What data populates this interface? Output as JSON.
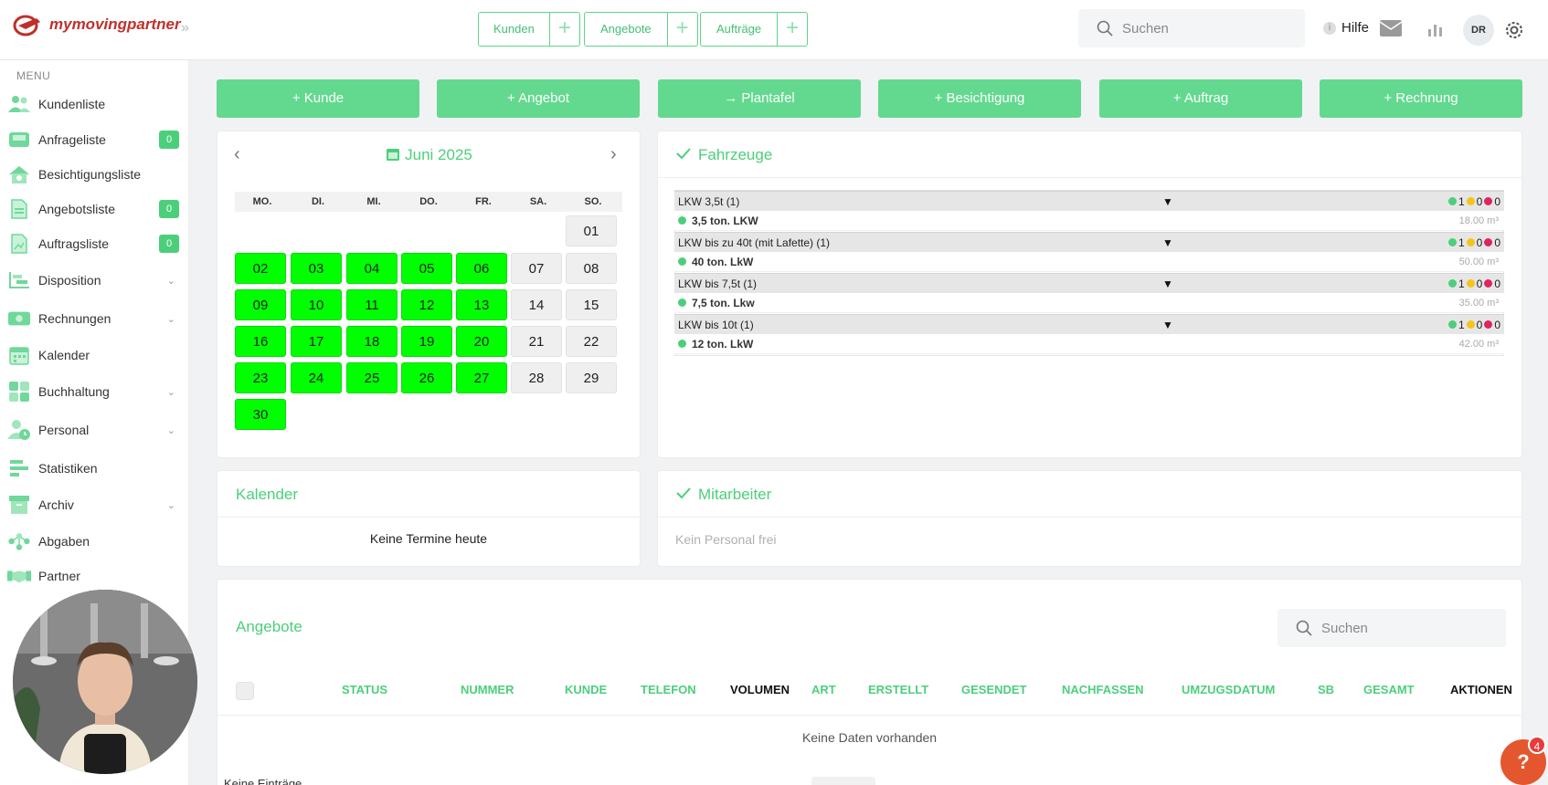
{
  "app": {
    "logo_text": "mymovingpartner"
  },
  "quick": [
    {
      "label": "Kunden"
    },
    {
      "label": "Angebote"
    },
    {
      "label": "Aufträge"
    }
  ],
  "search": {
    "placeholder": "Suchen"
  },
  "header": {
    "help": "Hilfe",
    "avatar": "DR"
  },
  "sidebar": {
    "menu_title": "MENU",
    "items": [
      {
        "label": "Kundenliste"
      },
      {
        "label": "Anfrageliste",
        "badge": "0"
      },
      {
        "label": "Besichtigungsliste"
      },
      {
        "label": "Angebotsliste",
        "badge": "0"
      },
      {
        "label": "Auftragsliste",
        "badge": "0"
      },
      {
        "label": "Disposition"
      },
      {
        "label": "Rechnungen"
      },
      {
        "label": "Kalender"
      },
      {
        "label": "Buchhaltung"
      },
      {
        "label": "Personal"
      },
      {
        "label": "Statistiken"
      },
      {
        "label": "Archiv"
      },
      {
        "label": "Abgaben"
      },
      {
        "label": "Partner"
      }
    ]
  },
  "actions": [
    {
      "label": "+ Kunde"
    },
    {
      "label": "+ Angebot"
    },
    {
      "label": "→ Plantafel"
    },
    {
      "label": "+ Besichtigung"
    },
    {
      "label": "+ Auftrag"
    },
    {
      "label": "+ Rechnung"
    }
  ],
  "calendar": {
    "month": "Juni 2025",
    "weekdays": [
      "MO.",
      "DI.",
      "MI.",
      "DO.",
      "FR.",
      "SA.",
      "SO."
    ],
    "days": [
      "01",
      "02",
      "03",
      "04",
      "05",
      "06",
      "07",
      "08",
      "09",
      "10",
      "11",
      "12",
      "13",
      "14",
      "15",
      "16",
      "17",
      "18",
      "19",
      "20",
      "21",
      "22",
      "23",
      "24",
      "25",
      "26",
      "27",
      "28",
      "29",
      "30"
    ]
  },
  "vehicles": {
    "title": "Fahrzeuge",
    "groups": [
      {
        "name": "LKW 3,5t (1)",
        "green": "1",
        "yellow": "0",
        "red": "0",
        "vehicle": "3,5 ton. LKW",
        "volume": "18.00 m³"
      },
      {
        "name": "LKW bis zu 40t (mit Lafette) (1)",
        "green": "1",
        "yellow": "0",
        "red": "0",
        "vehicle": "40 ton. LkW",
        "volume": "50.00 m³"
      },
      {
        "name": "LKW bis 7,5t (1)",
        "green": "1",
        "yellow": "0",
        "red": "0",
        "vehicle": "7,5 ton. Lkw",
        "volume": "35.00 m³"
      },
      {
        "name": "LKW bis 10t (1)",
        "green": "1",
        "yellow": "0",
        "red": "0",
        "vehicle": "12 ton. LkW",
        "volume": "42.00 m³"
      }
    ]
  },
  "kalender": {
    "title": "Kalender",
    "empty": "Keine Termine heute"
  },
  "mitarbeiter": {
    "title": "Mitarbeiter",
    "empty": "Kein Personal frei"
  },
  "angebote": {
    "title": "Angebote",
    "search_placeholder": "Suchen",
    "columns": [
      "STATUS",
      "NUMMER",
      "KUNDE",
      "TELEFON",
      "VOLUMEN",
      "ART",
      "ERSTELLT",
      "GESENDET",
      "NACHFASSEN",
      "UMZUGSDATUM",
      "SB",
      "GESAMT",
      "AKTIONEN"
    ],
    "empty": "Keine Daten vorhanden",
    "footer": "Keine Einträge"
  },
  "fab": {
    "label": "?",
    "badge": "4"
  },
  "colors": {
    "accent": "#4ccf7b",
    "workday": "#00ff00",
    "status_green": "#4ccf7b",
    "status_yellow": "#f5c518",
    "status_red": "#e0245e"
  }
}
